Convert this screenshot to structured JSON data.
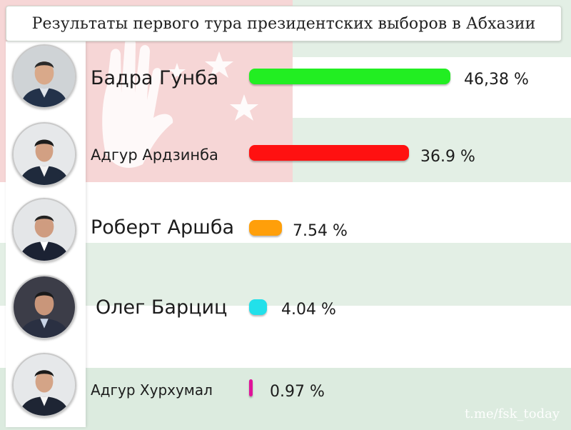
{
  "title": "Результаты первого тура президентских выборов в Абхазии",
  "watermark": "t.me/fsk_today",
  "colors": {
    "flag_green": "#2e9e4f",
    "flag_red": "#d6232a",
    "stripe_green_light": "#e3efe5"
  },
  "chart_data": {
    "type": "bar",
    "orientation": "horizontal",
    "categories": [
      "Бадра Гунба",
      "Адгур Ардзинба",
      "Роберт Аршба",
      "Олег Барциц",
      "Адгур Хурхумал"
    ],
    "values": [
      46.38,
      36.9,
      7.54,
      4.04,
      0.97
    ],
    "value_labels": [
      "46,38 %",
      "36.9 %",
      "7.54 %",
      "4.04 %",
      "0.97 %"
    ],
    "bar_colors": [
      "#22ee22",
      "#ff1111",
      "#ff9f0a",
      "#22e0ea",
      "#e0139a"
    ],
    "title": "Результаты первого тура президентских выборов в Абхазии",
    "xlabel": "",
    "ylabel": "",
    "xlim": [
      0,
      46.38
    ]
  },
  "candidates": [
    {
      "name": "Бадра Гунба",
      "icon": "portrait-icon"
    },
    {
      "name": "Адгур Ардзинба",
      "icon": "portrait-icon"
    },
    {
      "name": "Роберт Аршба",
      "icon": "portrait-icon"
    },
    {
      "name": "Олег Барциц",
      "icon": "portrait-icon"
    },
    {
      "name": "Адгур Хурхумал",
      "icon": "portrait-icon"
    }
  ]
}
